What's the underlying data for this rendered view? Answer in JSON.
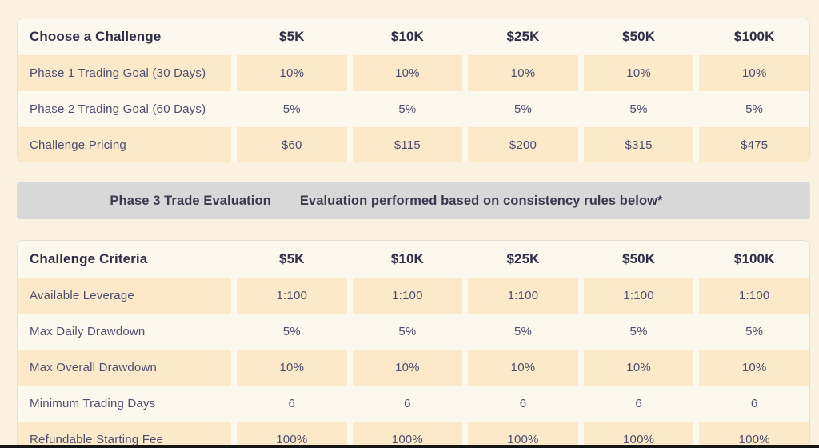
{
  "colors": {
    "page_background": "#faf1e1",
    "card_background": "#fdf8ed",
    "card_border": "#e9e0cf",
    "peach_cell": "#fbe9ca",
    "banner_background": "#d8d8d8",
    "heading_text": "#2f2f49",
    "body_text": "#4d4d70",
    "bottom_bar": "#151515"
  },
  "pricing_table": {
    "header": [
      "Choose a Challenge",
      "$5K",
      "$10K",
      "$25K",
      "$50K",
      "$100K"
    ],
    "rows": [
      {
        "label": "Phase 1 Trading Goal (30 Days)",
        "values": [
          "10%",
          "10%",
          "10%",
          "10%",
          "10%"
        ]
      },
      {
        "label": "Phase 2 Trading Goal (60 Days)",
        "values": [
          "5%",
          "5%",
          "5%",
          "5%",
          "5%"
        ]
      },
      {
        "label": "Challenge Pricing",
        "values": [
          "$60",
          "$115",
          "$200",
          "$315",
          "$475"
        ]
      }
    ]
  },
  "banner": {
    "title": "Phase 3 Trade Evaluation",
    "subtitle": "Evaluation performed based on consistency rules below*"
  },
  "criteria_table": {
    "header": [
      "Challenge Criteria",
      "$5K",
      "$10K",
      "$25K",
      "$50K",
      "$100K"
    ],
    "rows": [
      {
        "label": "Available Leverage",
        "values": [
          "1:100",
          "1:100",
          "1:100",
          "1:100",
          "1:100"
        ]
      },
      {
        "label": "Max Daily Drawdown",
        "values": [
          "5%",
          "5%",
          "5%",
          "5%",
          "5%"
        ]
      },
      {
        "label": "Max Overall Drawdown",
        "values": [
          "10%",
          "10%",
          "10%",
          "10%",
          "10%"
        ]
      },
      {
        "label": "Minimum Trading Days",
        "values": [
          "6",
          "6",
          "6",
          "6",
          "6"
        ]
      },
      {
        "label": "Refundable Starting Fee",
        "values": [
          "100%",
          "100%",
          "100%",
          "100%",
          "100%"
        ]
      }
    ]
  }
}
